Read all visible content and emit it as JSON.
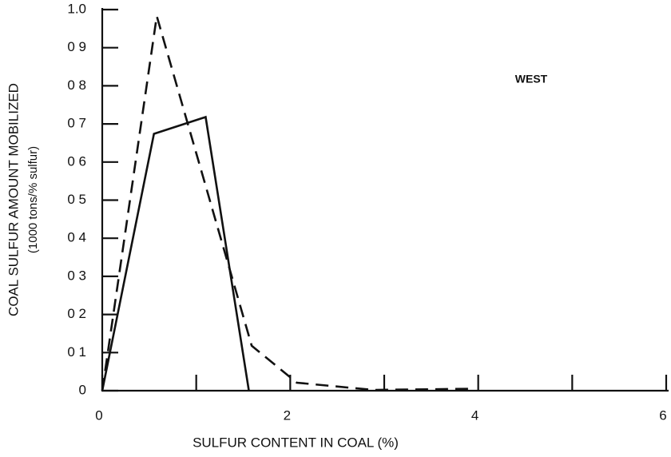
{
  "chart_data": {
    "type": "line",
    "xlabel": "SULFUR CONTENT IN COAL (%)",
    "ylabel": [
      "COAL SULFUR AMOUNT MOBILIZED",
      "(1000 tons/% sulfur)"
    ],
    "annotation": "WEST",
    "xlim": [
      0,
      6
    ],
    "ylim": [
      0,
      1.0
    ],
    "xticks": [
      0,
      2,
      4,
      6
    ],
    "xminorticks": [
      1,
      3,
      5
    ],
    "yticks": [
      0,
      {
        "value": 0.1,
        "label": "0 1"
      },
      {
        "value": 0.2,
        "label": "0 2"
      },
      {
        "value": 0.3,
        "label": "0 3"
      },
      {
        "value": 0.4,
        "label": "0 4"
      },
      {
        "value": 0.5,
        "label": "0 5"
      },
      {
        "value": 0.6,
        "label": "0 6"
      },
      {
        "value": 0.7,
        "label": "0 7"
      },
      {
        "value": 0.8,
        "label": "0 8"
      },
      {
        "value": 0.9,
        "label": "0 9"
      },
      {
        "value": 1.0,
        "label": "1.0"
      }
    ],
    "series": [
      {
        "color": "#111111",
        "dash": "none",
        "x": [
          0,
          0.55,
          1.1,
          1.56
        ],
        "values": [
          0,
          0.674,
          0.718,
          0
        ]
      },
      {
        "color": "#111111",
        "dash": "16 9",
        "x": [
          0,
          0.58,
          1.59,
          2.07,
          2.88,
          3.92
        ],
        "values": [
          0,
          0.983,
          0.118,
          0.021,
          0.002,
          0.005
        ]
      }
    ]
  }
}
